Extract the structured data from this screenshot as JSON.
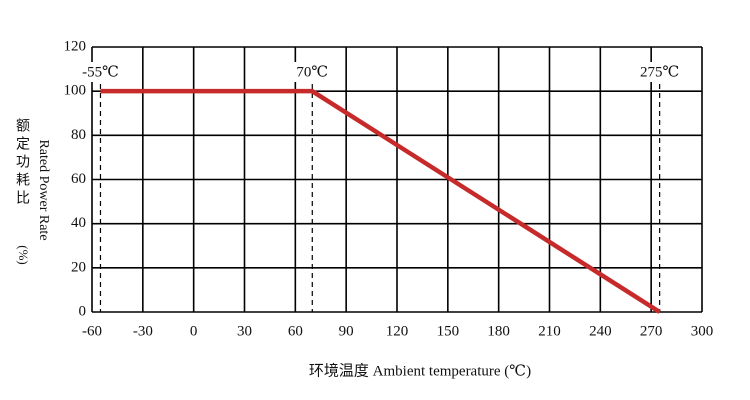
{
  "chart_data": {
    "type": "line",
    "x_label": "环境温度 Ambient temperature (℃)",
    "y_label_en": "Rated Power Rate",
    "y_label_cn": "额定功耗比",
    "y_label_unit": "(%)",
    "x": [
      -55,
      70,
      275
    ],
    "series": [
      {
        "color": "#c62a2a",
        "values": [
          100,
          100,
          0
        ]
      }
    ],
    "annotations": [
      {
        "label": "-55℃",
        "x": -55
      },
      {
        "label": "70℃",
        "x": 70
      },
      {
        "label": "275℃",
        "x": 275
      }
    ],
    "xlim": [
      -60,
      300
    ],
    "xticks": [
      -60,
      -30,
      0,
      30,
      60,
      90,
      120,
      150,
      180,
      210,
      240,
      270,
      300
    ],
    "ylim": [
      0,
      120
    ],
    "yticks": [
      0,
      20,
      40,
      60,
      80,
      100,
      120
    ],
    "grid": true
  }
}
